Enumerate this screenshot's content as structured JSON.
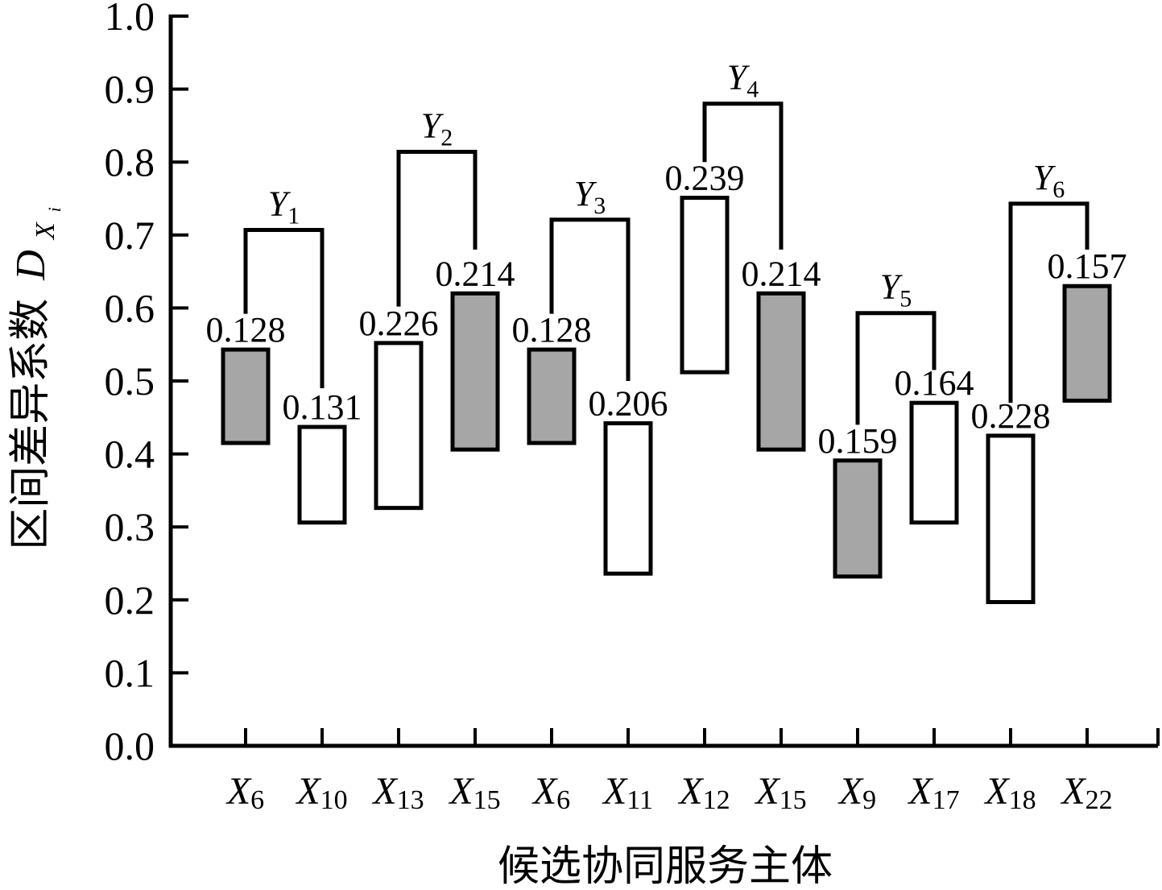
{
  "chart_data": {
    "type": "floating-bar",
    "xlabel": "候选协同服务主体",
    "ylabel": "区间差异系数",
    "ylabel_symbol": "D",
    "ylabel_sub": "X",
    "ylabel_subsub": "i",
    "ylim": [
      0,
      1.0
    ],
    "yticks": [
      "0.0",
      "0.1",
      "0.2",
      "0.3",
      "0.4",
      "0.5",
      "0.6",
      "0.7",
      "0.8",
      "0.9",
      "1.0"
    ],
    "categories": [
      {
        "base": "X",
        "sub": "6"
      },
      {
        "base": "X",
        "sub": "10"
      },
      {
        "base": "X",
        "sub": "13"
      },
      {
        "base": "X",
        "sub": "15"
      },
      {
        "base": "X",
        "sub": "6"
      },
      {
        "base": "X",
        "sub": "11"
      },
      {
        "base": "X",
        "sub": "12"
      },
      {
        "base": "X",
        "sub": "15"
      },
      {
        "base": "X",
        "sub": "9"
      },
      {
        "base": "X",
        "sub": "17"
      },
      {
        "base": "X",
        "sub": "18"
      },
      {
        "base": "X",
        "sub": "22"
      }
    ],
    "bars": [
      {
        "low": 0.415,
        "high": 0.543,
        "label": "0.128",
        "fill": "#a6a6a6"
      },
      {
        "low": 0.306,
        "high": 0.437,
        "label": "0.131",
        "fill": "#ffffff"
      },
      {
        "low": 0.326,
        "high": 0.552,
        "label": "0.226",
        "fill": "#ffffff"
      },
      {
        "low": 0.406,
        "high": 0.62,
        "label": "0.214",
        "fill": "#a6a6a6"
      },
      {
        "low": 0.415,
        "high": 0.543,
        "label": "0.128",
        "fill": "#a6a6a6"
      },
      {
        "low": 0.236,
        "high": 0.442,
        "label": "0.206",
        "fill": "#ffffff"
      },
      {
        "low": 0.512,
        "high": 0.751,
        "label": "0.239",
        "fill": "#ffffff"
      },
      {
        "low": 0.406,
        "high": 0.62,
        "label": "0.214",
        "fill": "#a6a6a6"
      },
      {
        "low": 0.232,
        "high": 0.391,
        "label": "0.159",
        "fill": "#a6a6a6"
      },
      {
        "low": 0.306,
        "high": 0.47,
        "label": "0.164",
        "fill": "#ffffff"
      },
      {
        "low": 0.197,
        "high": 0.425,
        "label": "0.228",
        "fill": "#ffffff"
      },
      {
        "low": 0.473,
        "high": 0.63,
        "label": "0.157",
        "fill": "#a6a6a6"
      }
    ],
    "groups": [
      {
        "base": "Y",
        "sub": "1",
        "pair": [
          0,
          1
        ],
        "top": 0.707,
        "ends": [
          0.592,
          0.49
        ]
      },
      {
        "base": "Y",
        "sub": "2",
        "pair": [
          2,
          3
        ],
        "top": 0.814,
        "ends": [
          0.602,
          0.68
        ]
      },
      {
        "base": "Y",
        "sub": "3",
        "pair": [
          4,
          5
        ],
        "top": 0.721,
        "ends": [
          0.592,
          0.5
        ]
      },
      {
        "base": "Y",
        "sub": "4",
        "pair": [
          6,
          7
        ],
        "top": 0.88,
        "ends": [
          0.8,
          0.68
        ]
      },
      {
        "base": "Y",
        "sub": "5",
        "pair": [
          8,
          9
        ],
        "top": 0.593,
        "ends": [
          0.44,
          0.515
        ]
      },
      {
        "base": "Y",
        "sub": "6",
        "pair": [
          10,
          11
        ],
        "top": 0.743,
        "ends": [
          0.47,
          0.68
        ]
      }
    ]
  }
}
